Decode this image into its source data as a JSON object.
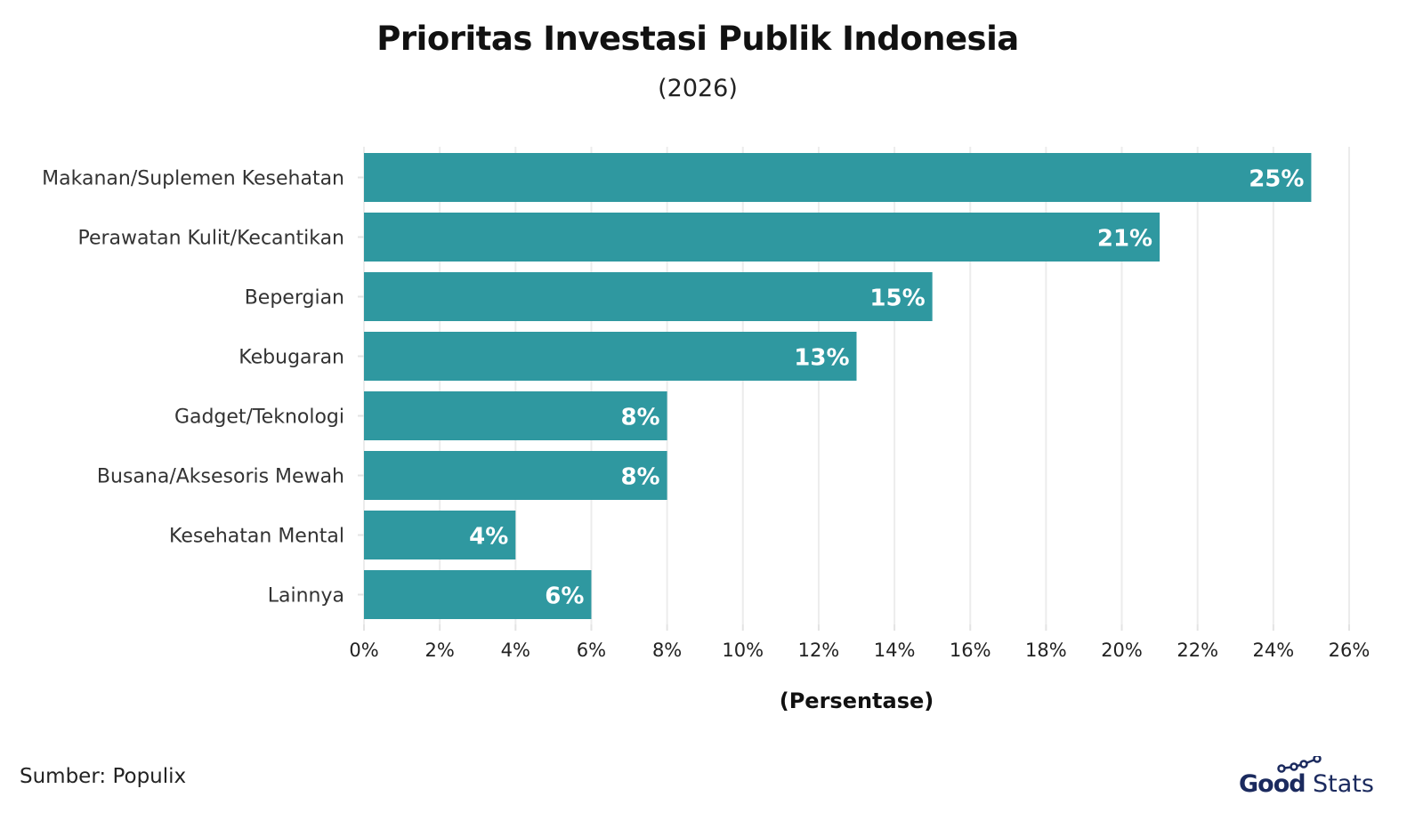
{
  "chart_data": {
    "type": "bar",
    "orientation": "horizontal",
    "title": "Prioritas Investasi Publik Indonesia",
    "subtitle": "(2026)",
    "xlabel": "(Persentase)",
    "ylabel": "",
    "categories": [
      "Makanan/Suplemen Kesehatan",
      "Perawatan Kulit/Kecantikan",
      "Bepergian",
      "Kebugaran",
      "Gadget/Teknologi",
      "Busana/Aksesoris Mewah",
      "Kesehatan Mental",
      "Lainnya"
    ],
    "values": [
      25,
      21,
      15,
      13,
      8,
      8,
      4,
      6
    ],
    "data_labels": [
      "25%",
      "21%",
      "15%",
      "13%",
      "8%",
      "8%",
      "4%",
      "6%"
    ],
    "xlim": [
      0,
      26
    ],
    "xticks": [
      "0%",
      "2%",
      "4%",
      "6%",
      "8%",
      "10%",
      "12%",
      "14%",
      "16%",
      "18%",
      "20%",
      "22%",
      "24%",
      "26%"
    ],
    "grid": true,
    "bar_color": "#2f98a0"
  },
  "source": "Sumber: Populix",
  "logo": {
    "text_bold": "Good",
    "text_light": "Stats",
    "color": "#1b2a5e"
  }
}
